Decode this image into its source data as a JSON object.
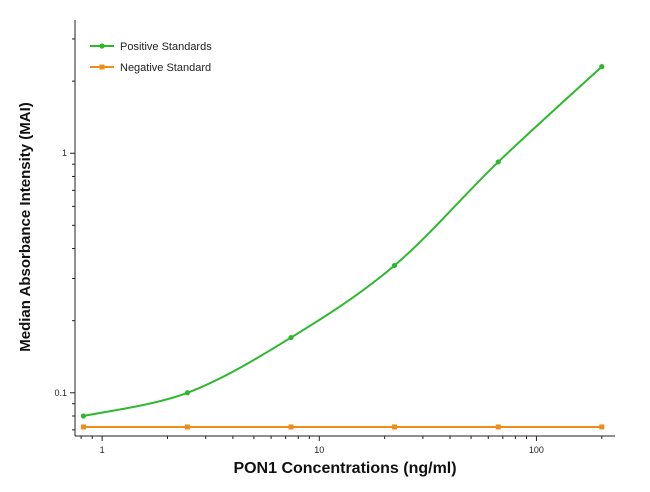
{
  "chart_data": {
    "type": "line",
    "title": "",
    "xlabel": "PON1 Concentrations (ng/ml)",
    "ylabel": "Median Absorbance Intensity (MAI)",
    "xscale": "log",
    "yscale": "log",
    "xlim": [
      0.75,
      230
    ],
    "ylim": [
      0.066,
      3.6
    ],
    "x_ticks": [
      1,
      10,
      100
    ],
    "x_tick_labels": [
      "1",
      "10",
      "100"
    ],
    "y_ticks": [
      0.1,
      1
    ],
    "y_tick_labels": [
      "0.1",
      "1"
    ],
    "grid": false,
    "legend_position": "top-left",
    "series": [
      {
        "name": "Positive Standards",
        "color": "#2db82d",
        "marker": "circle",
        "x": [
          0.82,
          2.47,
          7.41,
          22.2,
          66.7,
          200
        ],
        "y": [
          0.08,
          0.1,
          0.17,
          0.34,
          0.92,
          2.3
        ]
      },
      {
        "name": "Negative Standard",
        "color": "#f08c1c",
        "marker": "square",
        "x": [
          0.82,
          2.47,
          7.41,
          22.2,
          66.7,
          200
        ],
        "y": [
          0.072,
          0.072,
          0.072,
          0.072,
          0.072,
          0.072
        ]
      }
    ]
  }
}
